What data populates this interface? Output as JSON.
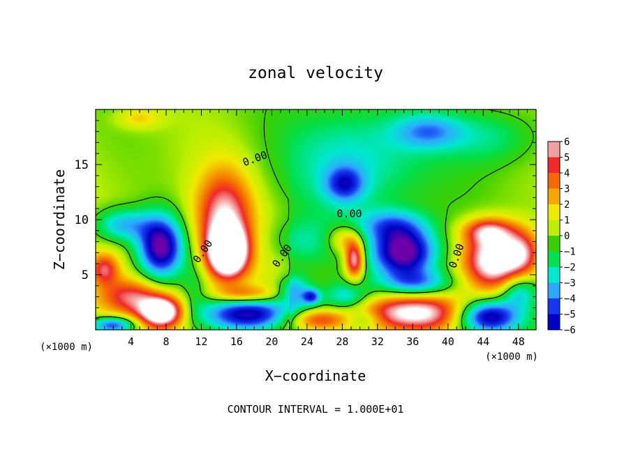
{
  "chart_data": {
    "type": "heatmap",
    "title": "zonal velocity",
    "xlabel": "X−coordinate",
    "ylabel": "Z−coordinate",
    "x_unit_left": "(×1000 m)",
    "x_unit_right": "(×1000 m)",
    "footer": "CONTOUR INTERVAL = 1.000E+01",
    "xlim": [
      0,
      50
    ],
    "ylim": [
      0,
      20
    ],
    "x_ticks": [
      4,
      8,
      12,
      16,
      20,
      24,
      28,
      32,
      36,
      40,
      44,
      48
    ],
    "y_ticks": [
      5,
      10,
      15
    ],
    "colorbar": {
      "ticks": [
        6,
        5,
        4,
        3,
        2,
        1,
        0,
        -1,
        -2,
        -3,
        -4,
        -5,
        -6
      ],
      "colors": [
        "#f4a0a0",
        "#ee2a2a",
        "#f56a00",
        "#f5a800",
        "#f0ea00",
        "#bcef00",
        "#3ccf00",
        "#00e050",
        "#00e8d0",
        "#30a8ff",
        "#1838f0",
        "#0000c0"
      ]
    },
    "contour_labels": [
      {
        "text": "0.00",
        "x": 18.1,
        "z": 15.5,
        "angle": -20
      },
      {
        "text": "0.00",
        "x": 12.2,
        "z": 7.1,
        "angle": -55
      },
      {
        "text": "0.00",
        "x": 21.2,
        "z": 6.7,
        "angle": -55
      },
      {
        "text": "0.00",
        "x": 28.8,
        "z": 10.5,
        "angle": 0
      },
      {
        "text": "0.00",
        "x": 41.0,
        "z": 6.7,
        "angle": -70
      }
    ],
    "features": [
      {
        "x": 4.9,
        "z": 19.2,
        "rx": 2.6,
        "rz": 1.0,
        "v": 2.0
      },
      {
        "x": 29.5,
        "z": 15.5,
        "rx": 8.0,
        "rz": 5.0,
        "v": -3.0
      },
      {
        "x": 37.8,
        "z": 18.0,
        "rx": 4.0,
        "rz": 1.6,
        "v": -3.5
      },
      {
        "x": 28.3,
        "z": 13.2,
        "rx": 2.2,
        "rz": 1.6,
        "v": -4.0
      },
      {
        "x": 45.0,
        "z": 17.5,
        "rx": 5.0,
        "rz": 2.5,
        "v": -2.0
      },
      {
        "x": 14.6,
        "z": 10.3,
        "rx": 3.2,
        "rz": 4.2,
        "v": 5.5
      },
      {
        "x": 15.0,
        "z": 7.0,
        "rx": 2.2,
        "rz": 2.2,
        "v": 9.0
      },
      {
        "x": 7.4,
        "z": 7.5,
        "rx": 2.6,
        "rz": 2.8,
        "v": -8.0
      },
      {
        "x": 3.0,
        "z": 9.5,
        "rx": 3.2,
        "rz": 1.5,
        "v": -4.0
      },
      {
        "x": 1.0,
        "z": 5.5,
        "rx": 1.6,
        "rz": 1.4,
        "v": 4.0
      },
      {
        "x": 4.0,
        "z": 3.0,
        "rx": 3.5,
        "rz": 1.6,
        "v": 4.0
      },
      {
        "x": 7.5,
        "z": 1.6,
        "rx": 2.5,
        "rz": 1.4,
        "v": 8.0
      },
      {
        "x": 2.0,
        "z": 0.4,
        "rx": 2.6,
        "rz": 0.8,
        "v": -6.0
      },
      {
        "x": 17.5,
        "z": 1.4,
        "rx": 5.5,
        "rz": 1.6,
        "v": -7.5
      },
      {
        "x": 17.0,
        "z": 3.2,
        "rx": 3.5,
        "rz": 0.8,
        "v": 3.5
      },
      {
        "x": 22.5,
        "z": 3.6,
        "rx": 1.8,
        "rz": 1.4,
        "v": -3.5
      },
      {
        "x": 24.5,
        "z": 3.0,
        "rx": 1.0,
        "rz": 0.7,
        "v": -4.5
      },
      {
        "x": 25.0,
        "z": 0.9,
        "rx": 3.5,
        "rz": 1.0,
        "v": 4.5
      },
      {
        "x": 23.5,
        "z": 8.0,
        "rx": 4.0,
        "rz": 2.0,
        "v": -1.8
      },
      {
        "x": 29.4,
        "z": 6.3,
        "rx": 1.1,
        "rz": 1.7,
        "v": 6.5
      },
      {
        "x": 28.3,
        "z": 8.2,
        "rx": 2.0,
        "rz": 1.3,
        "v": 3.0
      },
      {
        "x": 28.5,
        "z": 3.0,
        "rx": 2.5,
        "rz": 1.2,
        "v": -3.0
      },
      {
        "x": 33.5,
        "z": 9.5,
        "rx": 4.0,
        "rz": 1.5,
        "v": -3.5
      },
      {
        "x": 35.0,
        "z": 7.0,
        "rx": 3.6,
        "rz": 2.2,
        "v": -8.0
      },
      {
        "x": 36.0,
        "z": 1.5,
        "rx": 6.5,
        "rz": 1.8,
        "v": 7.0
      },
      {
        "x": 36.5,
        "z": 4.2,
        "rx": 4.0,
        "rz": 1.2,
        "v": -4.0
      },
      {
        "x": 45.3,
        "z": 6.3,
        "rx": 3.6,
        "rz": 2.8,
        "v": 8.0
      },
      {
        "x": 44.5,
        "z": 9.0,
        "rx": 3.0,
        "rz": 1.2,
        "v": 4.0
      },
      {
        "x": 48.5,
        "z": 7.0,
        "rx": 2.0,
        "rz": 2.0,
        "v": 3.5
      },
      {
        "x": 44.5,
        "z": 1.2,
        "rx": 3.5,
        "rz": 1.5,
        "v": -7.5
      },
      {
        "x": 48.0,
        "z": 3.5,
        "rx": 2.0,
        "rz": 1.5,
        "v": -3.5
      },
      {
        "x": 30.5,
        "z": 1.0,
        "rx": 2.0,
        "rz": 0.8,
        "v": -2.0
      },
      {
        "x": 11.2,
        "z": 4.0,
        "rx": 1.5,
        "rz": 2.5,
        "v": -1.5
      }
    ]
  }
}
